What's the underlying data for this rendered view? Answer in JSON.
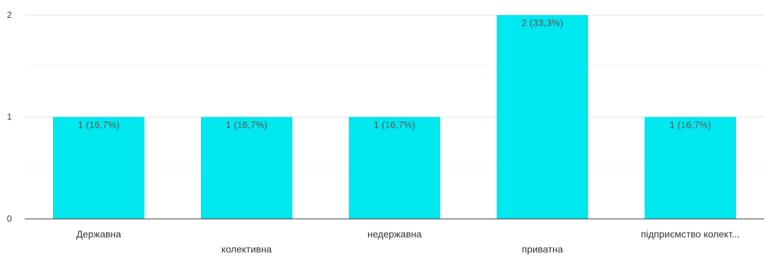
{
  "chart_data": {
    "type": "bar",
    "categories": [
      "Державна",
      "колективна",
      "недержавна",
      "приватна",
      "підприємство колект..."
    ],
    "values": [
      1,
      1,
      1,
      2,
      1
    ],
    "data_labels": [
      "1 (16,7%)",
      "1 (16,7%)",
      "1 (16,7%)",
      "2 (33,3%)",
      "1 (16,7%)"
    ],
    "ylim": [
      0,
      2
    ],
    "yticks": [
      0,
      1,
      2
    ],
    "ytick_labels": [
      "0",
      "1",
      "2"
    ],
    "grid": true,
    "legend": "none",
    "bar_color": "#00e8f0",
    "title": "",
    "xlabel": "",
    "ylabel": ""
  }
}
